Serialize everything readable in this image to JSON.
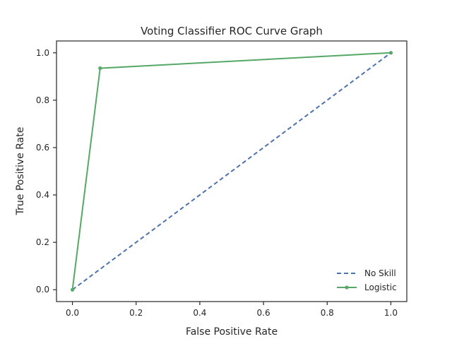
{
  "chart_data": {
    "type": "line",
    "title": "Voting Classifier ROC Curve Graph",
    "xlabel": "False Positive Rate",
    "ylabel": "True Positive Rate",
    "xlim": [
      -0.05,
      1.05
    ],
    "ylim": [
      -0.05,
      1.05
    ],
    "x_ticks": [
      0.0,
      0.2,
      0.4,
      0.6,
      0.8,
      1.0
    ],
    "y_ticks": [
      0.0,
      0.2,
      0.4,
      0.6,
      0.8,
      1.0
    ],
    "x_tick_labels": [
      "0.0",
      "0.2",
      "0.4",
      "0.6",
      "0.8",
      "1.0"
    ],
    "y_tick_labels": [
      "0.0",
      "0.2",
      "0.4",
      "0.6",
      "0.8",
      "1.0"
    ],
    "grid": false,
    "legend_position": "lower-right",
    "series": [
      {
        "name": "No Skill",
        "x": [
          0.0,
          1.0
        ],
        "y": [
          0.0,
          1.0
        ],
        "color": "#4c72b0",
        "style": "dashed",
        "markers": false
      },
      {
        "name": "Logistic",
        "x": [
          0.0,
          0.087,
          1.0
        ],
        "y": [
          0.0,
          0.935,
          1.0
        ],
        "color": "#55a868",
        "style": "solid",
        "markers": true
      }
    ]
  }
}
